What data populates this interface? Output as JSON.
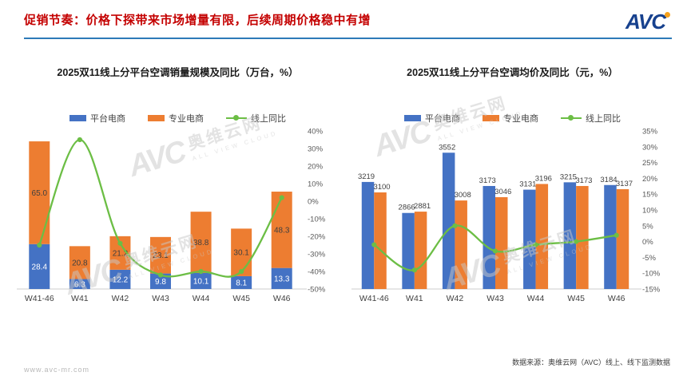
{
  "header": {
    "title": "促销节奏：价格下探带来市场增量有限，后续周期价格稳中有增",
    "logo_text": "AVC",
    "accent_color": "#c40000",
    "rule_color": "#2d7ab8"
  },
  "colors": {
    "blue": "#4472C4",
    "orange": "#ED7D31",
    "green": "#6CBE45"
  },
  "watermark": {
    "brand": "AVC",
    "name": "奥维云网",
    "tagline": "ALL VIEW CLOUD"
  },
  "footer": {
    "source": "数据来源：奥维云网（AVC）线上、线下监测数据",
    "website": "www.avc-mr.com"
  },
  "chart_data": [
    {
      "id": "online-ac-sales-volume",
      "type": "bar",
      "bar_mode": "stacked",
      "title": "2025双11线上分平台空调销量规模及同比（万台，%）",
      "categories": [
        "W41-46",
        "W41",
        "W42",
        "W43",
        "W44",
        "W45",
        "W46"
      ],
      "series": [
        {
          "name": "平台电商",
          "type": "bar",
          "color_key": "blue",
          "values": [
            28.4,
            6.3,
            12.2,
            9.8,
            10.1,
            8.1,
            13.3
          ]
        },
        {
          "name": "专业电商",
          "type": "bar",
          "color_key": "orange",
          "values": [
            65.0,
            20.8,
            21.2,
            23.1,
            38.8,
            30.1,
            48.3
          ]
        },
        {
          "name": "线上同比",
          "type": "line",
          "color_key": "green",
          "axis": "right",
          "values": [
            -25,
            35,
            -24,
            -42,
            -40,
            -40,
            2
          ]
        }
      ],
      "bar_axis": {
        "min": 0,
        "max": 100,
        "visible": false
      },
      "line_axis": {
        "min": -50,
        "max": 40,
        "step": 10,
        "format": "percent",
        "position": "right"
      },
      "value_label_decimals": 1,
      "legend_position": "top",
      "grid": false
    },
    {
      "id": "online-ac-average-price",
      "type": "bar",
      "bar_mode": "grouped",
      "title": "2025双11线上分平台空调均价及同比（元，%）",
      "categories": [
        "W41-46",
        "W41",
        "W42",
        "W43",
        "W44",
        "W45",
        "W46"
      ],
      "series": [
        {
          "name": "平台电商",
          "type": "bar",
          "color_key": "blue",
          "values": [
            3219,
            2866,
            3552,
            3173,
            3131,
            3215,
            3184
          ]
        },
        {
          "name": "专业电商",
          "type": "bar",
          "color_key": "orange",
          "values": [
            3100,
            2881,
            3008,
            3046,
            3196,
            3173,
            3137
          ]
        },
        {
          "name": "线上同比",
          "type": "line",
          "color_key": "green",
          "axis": "right",
          "values": [
            -1,
            -9,
            5,
            -3,
            -1,
            0,
            2
          ]
        }
      ],
      "bar_axis": {
        "min": 2000,
        "max": 3800,
        "visible": false
      },
      "line_axis": {
        "min": -15,
        "max": 35,
        "step": 5,
        "format": "percent",
        "position": "right"
      },
      "value_label_decimals": 0,
      "legend_position": "top",
      "grid": false
    }
  ]
}
